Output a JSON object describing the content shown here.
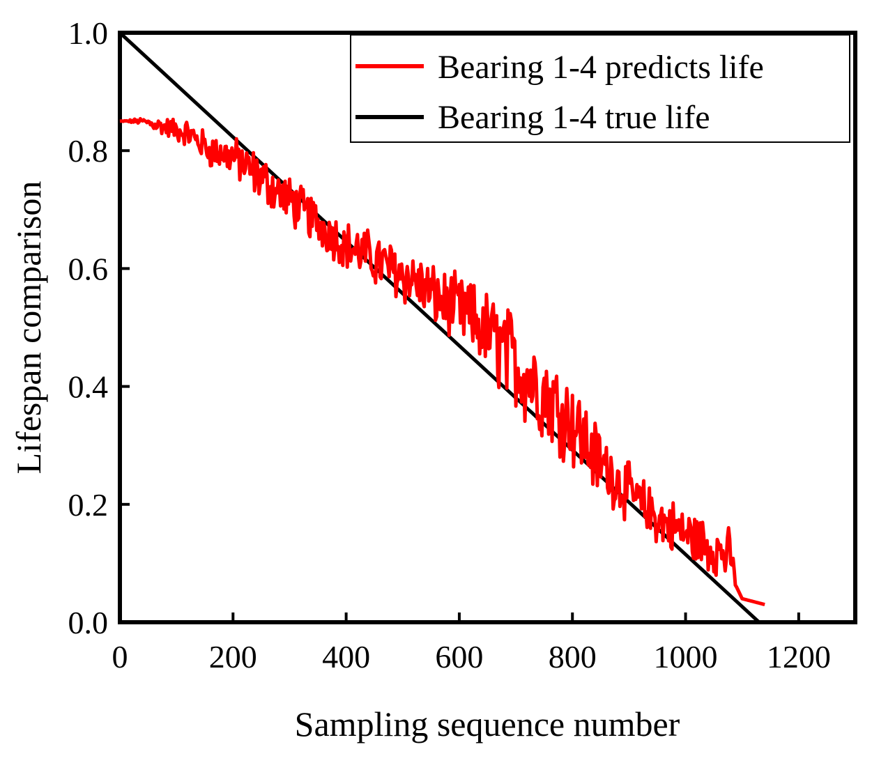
{
  "chart_data": {
    "type": "line",
    "title": "",
    "xlabel": "Sampling sequence number",
    "ylabel": "Lifespan comparison",
    "xlim": [
      0,
      1300
    ],
    "ylim": [
      0,
      1.0
    ],
    "xticks": [
      0,
      200,
      400,
      600,
      800,
      1000,
      1200
    ],
    "yticks": [
      0.0,
      0.2,
      0.4,
      0.6,
      0.8,
      1.0
    ],
    "xtick_labels": [
      "0",
      "200",
      "400",
      "600",
      "800",
      "1000",
      "1200"
    ],
    "ytick_labels": [
      "0.0",
      "0.2",
      "0.4",
      "0.6",
      "0.8",
      "1.0"
    ],
    "grid": false,
    "legend_position": "top-right",
    "series": [
      {
        "name": "Bearing 1-4 predicts life",
        "color": "#ff0000",
        "note": "noisy prediction curve",
        "x": [
          0,
          40,
          80,
          120,
          160,
          200,
          240,
          280,
          320,
          360,
          400,
          440,
          480,
          520,
          560,
          600,
          640,
          680,
          720,
          760,
          800,
          840,
          880,
          920,
          960,
          1000,
          1040,
          1060,
          1080,
          1090,
          1100,
          1120,
          1140
        ],
        "values": [
          0.85,
          0.85,
          0.84,
          0.83,
          0.8,
          0.79,
          0.76,
          0.73,
          0.7,
          0.67,
          0.64,
          0.62,
          0.6,
          0.58,
          0.55,
          0.53,
          0.5,
          0.46,
          0.42,
          0.38,
          0.34,
          0.28,
          0.24,
          0.2,
          0.17,
          0.15,
          0.13,
          0.12,
          0.11,
          0.06,
          0.04,
          0.035,
          0.03
        ],
        "noise_amplitude": [
          0.0,
          0.005,
          0.015,
          0.02,
          0.025,
          0.03,
          0.035,
          0.035,
          0.035,
          0.035,
          0.035,
          0.04,
          0.04,
          0.045,
          0.045,
          0.05,
          0.06,
          0.07,
          0.075,
          0.07,
          0.065,
          0.055,
          0.045,
          0.04,
          0.04,
          0.04,
          0.04,
          0.04,
          0.04,
          0.0,
          0.0,
          0.0,
          0.0
        ]
      },
      {
        "name": "Bearing 1-4 true life",
        "color": "#000000",
        "x": [
          0,
          1130
        ],
        "values": [
          1.0,
          0.0
        ]
      }
    ]
  }
}
